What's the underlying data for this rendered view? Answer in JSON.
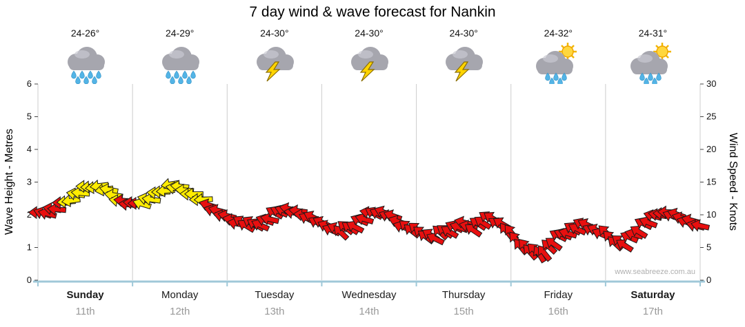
{
  "chart_data": {
    "type": "line",
    "title": "7 day wind & wave forecast for Nankin",
    "watermark": "www.seabreeze.com.au",
    "y_left": {
      "label": "Wave Height - Metres",
      "min": 0,
      "max": 6,
      "ticks": [
        0,
        1,
        2,
        3,
        4,
        5,
        6
      ]
    },
    "y_right": {
      "label": "Wind Speed - Knots",
      "min": 0,
      "max": 30,
      "ticks": [
        0,
        5,
        10,
        15,
        20,
        25,
        30
      ]
    },
    "grid": "vertical-day-boundaries",
    "legend": "none",
    "days": [
      {
        "name": "Sunday",
        "date": "11th",
        "temp": "24-26°",
        "icon": "rain",
        "bold": true
      },
      {
        "name": "Monday",
        "date": "12th",
        "temp": "24-29°",
        "icon": "rain",
        "bold": false
      },
      {
        "name": "Tuesday",
        "date": "13th",
        "temp": "24-30°",
        "icon": "storm",
        "bold": false
      },
      {
        "name": "Wednesday",
        "date": "14th",
        "temp": "24-30°",
        "icon": "storm",
        "bold": false
      },
      {
        "name": "Thursday",
        "date": "15th",
        "temp": "24-30°",
        "icon": "storm",
        "bold": false
      },
      {
        "name": "Friday",
        "date": "16th",
        "temp": "24-32°",
        "icon": "sun-rain",
        "bold": false
      },
      {
        "name": "Saturday",
        "date": "17th",
        "temp": "24-31°",
        "icon": "sun-rain",
        "bold": true
      }
    ],
    "wind_series": {
      "units": "knots",
      "t_step": 0.1,
      "color_legend": {
        "y": "stronger wind (yellow arrows)",
        "r": "lighter wind (red arrows)"
      },
      "points": [
        {
          "k": 10,
          "d": 190,
          "c": "r"
        },
        {
          "k": 10.5,
          "d": 188,
          "c": "r"
        },
        {
          "k": 11,
          "d": 185,
          "c": "r"
        },
        {
          "k": 12,
          "d": 182,
          "c": "y"
        },
        {
          "k": 13,
          "d": 180,
          "c": "y"
        },
        {
          "k": 14,
          "d": 178,
          "c": "y"
        },
        {
          "k": 14.5,
          "d": 178,
          "c": "y"
        },
        {
          "k": 14,
          "d": 180,
          "c": "y"
        },
        {
          "k": 13,
          "d": 183,
          "c": "y"
        },
        {
          "k": 12,
          "d": 186,
          "c": "r"
        },
        {
          "k": 11.5,
          "d": 190,
          "c": "r"
        },
        {
          "k": 12,
          "d": 188,
          "c": "y"
        },
        {
          "k": 12.5,
          "d": 185,
          "c": "y"
        },
        {
          "k": 13.5,
          "d": 182,
          "c": "y"
        },
        {
          "k": 14.5,
          "d": 180,
          "c": "y"
        },
        {
          "k": 14,
          "d": 180,
          "c": "y"
        },
        {
          "k": 13.5,
          "d": 182,
          "c": "y"
        },
        {
          "k": 12.5,
          "d": 185,
          "c": "y"
        },
        {
          "k": 11.5,
          "d": 188,
          "c": "r"
        },
        {
          "k": 10.5,
          "d": 192,
          "c": "r"
        },
        {
          "k": 9.5,
          "d": 196,
          "c": "r"
        },
        {
          "k": 9,
          "d": 200,
          "c": "r"
        },
        {
          "k": 8.5,
          "d": 205,
          "c": "r"
        },
        {
          "k": 8.5,
          "d": 210,
          "c": "r"
        },
        {
          "k": 9,
          "d": 205,
          "c": "r"
        },
        {
          "k": 10,
          "d": 200,
          "c": "r"
        },
        {
          "k": 11,
          "d": 195,
          "c": "r"
        },
        {
          "k": 10.5,
          "d": 192,
          "c": "r"
        },
        {
          "k": 10,
          "d": 195,
          "c": "r"
        },
        {
          "k": 9.5,
          "d": 200,
          "c": "r"
        },
        {
          "k": 8.5,
          "d": 205,
          "c": "r"
        },
        {
          "k": 8,
          "d": 210,
          "c": "r"
        },
        {
          "k": 7.5,
          "d": 215,
          "c": "r"
        },
        {
          "k": 8,
          "d": 210,
          "c": "r"
        },
        {
          "k": 9,
          "d": 205,
          "c": "r"
        },
        {
          "k": 10,
          "d": 200,
          "c": "r"
        },
        {
          "k": 10.5,
          "d": 198,
          "c": "r"
        },
        {
          "k": 10,
          "d": 200,
          "c": "r"
        },
        {
          "k": 9,
          "d": 205,
          "c": "r"
        },
        {
          "k": 8,
          "d": 210,
          "c": "r"
        },
        {
          "k": 7.5,
          "d": 215,
          "c": "r"
        },
        {
          "k": 7,
          "d": 220,
          "c": "r"
        },
        {
          "k": 6.5,
          "d": 215,
          "c": "r"
        },
        {
          "k": 7.5,
          "d": 210,
          "c": "r"
        },
        {
          "k": 8,
          "d": 205,
          "c": "r"
        },
        {
          "k": 8.5,
          "d": 200,
          "c": "r"
        },
        {
          "k": 8,
          "d": 205,
          "c": "r"
        },
        {
          "k": 9,
          "d": 210,
          "c": "r"
        },
        {
          "k": 9.5,
          "d": 215,
          "c": "r"
        },
        {
          "k": 8.5,
          "d": 220,
          "c": "r"
        },
        {
          "k": 7,
          "d": 225,
          "c": "r"
        },
        {
          "k": 5.5,
          "d": 230,
          "c": "r"
        },
        {
          "k": 4.5,
          "d": 235,
          "c": "r"
        },
        {
          "k": 4,
          "d": 230,
          "c": "r"
        },
        {
          "k": 5,
          "d": 220,
          "c": "r"
        },
        {
          "k": 6.5,
          "d": 210,
          "c": "r"
        },
        {
          "k": 7.5,
          "d": 205,
          "c": "r"
        },
        {
          "k": 8,
          "d": 200,
          "c": "r"
        },
        {
          "k": 8.5,
          "d": 205,
          "c": "r"
        },
        {
          "k": 7.5,
          "d": 210,
          "c": "r"
        },
        {
          "k": 7,
          "d": 215,
          "c": "r"
        },
        {
          "k": 6,
          "d": 220,
          "c": "r"
        },
        {
          "k": 5.5,
          "d": 215,
          "c": "r"
        },
        {
          "k": 7,
          "d": 205,
          "c": "r"
        },
        {
          "k": 8.5,
          "d": 200,
          "c": "r"
        },
        {
          "k": 9.5,
          "d": 195,
          "c": "r"
        },
        {
          "k": 10.5,
          "d": 190,
          "c": "r"
        },
        {
          "k": 10,
          "d": 192,
          "c": "r"
        },
        {
          "k": 9.5,
          "d": 195,
          "c": "r"
        },
        {
          "k": 9,
          "d": 198,
          "c": "r"
        },
        {
          "k": 8,
          "d": 202,
          "c": "r"
        }
      ]
    },
    "colors": {
      "yellow": "#ffec00",
      "red": "#e80f0f",
      "axis": "#9fc8d8",
      "grid": "#cccccc",
      "tick_text": "#111111",
      "date_text": "#999999"
    }
  }
}
